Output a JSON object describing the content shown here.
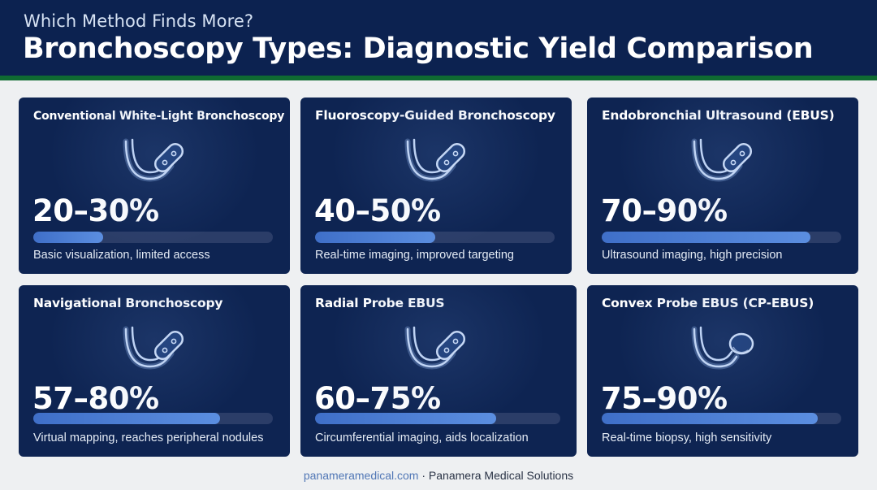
{
  "header": {
    "subtitle": "Which Method Finds More?",
    "title": "Bronchoscopy Types: Diagnostic Yield Comparison"
  },
  "cards": [
    {
      "title": "Conventional White-Light Bronchoscopy",
      "yield": "20–30%",
      "bar_fraction": 0.29,
      "description": "Basic visualization, limited access",
      "icon": "bronchoscope-icon"
    },
    {
      "title": "Fluoroscopy-Guided Bronchoscopy",
      "yield": "40–50%",
      "bar_fraction": 0.5,
      "description": "Real-time imaging, improved targeting",
      "icon": "bronchoscope-icon"
    },
    {
      "title": "Endobronchial Ultrasound (EBUS)",
      "yield": "70–90%",
      "bar_fraction": 0.87,
      "description": "Ultrasound imaging, high precision",
      "icon": "bronchoscope-icon"
    },
    {
      "title": "Navigational Bronchoscopy",
      "yield": "57–80%",
      "bar_fraction": 0.78,
      "description": "Virtual mapping, reaches peripheral nodules",
      "icon": "bronchoscope-icon"
    },
    {
      "title": "Radial Probe EBUS",
      "yield": "60–75%",
      "bar_fraction": 0.74,
      "description": "Circumferential imaging, aids localization",
      "icon": "bronchoscope-icon"
    },
    {
      "title": "Convex Probe EBUS (CP-EBUS)",
      "yield": "75–90%",
      "bar_fraction": 0.9,
      "description": "Real-time biopsy, high sensitivity",
      "icon": "convex-probe-icon"
    }
  ],
  "footer": {
    "site": "panameramedical.com",
    "separator": " · ",
    "company": "Panamera Medical Solutions"
  },
  "colors": {
    "header_bg": "#0c2250",
    "accent_stripe": "#0f6b32",
    "card_bg": "#0e2452",
    "bar_fill": "#4f7fd6",
    "bar_track": "#2b3d68"
  }
}
